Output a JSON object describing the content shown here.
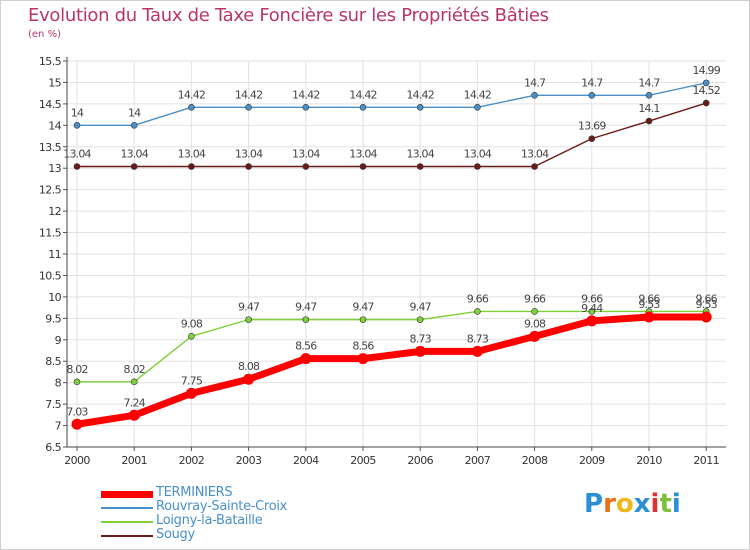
{
  "header": {
    "title": "Evolution du Taux de Taxe Foncière sur les Propriétés Bâties",
    "unit_label": "(en %)"
  },
  "chart_data": {
    "type": "line",
    "title": "Evolution du Taux de Taxe Foncière sur les Propriétés Bâties",
    "ylabel": "(en %)",
    "xlabel": "",
    "categories": [
      "2000",
      "2001",
      "2002",
      "2003",
      "2004",
      "2005",
      "2006",
      "2007",
      "2008",
      "2009",
      "2010",
      "2011"
    ],
    "ylim": [
      6.5,
      15.5
    ],
    "yticks": [
      "6.5",
      "7",
      "7.5",
      "8",
      "8.5",
      "9",
      "9.5",
      "10",
      "10.5",
      "11",
      "11.5",
      "12",
      "12.5",
      "13",
      "13.5",
      "14",
      "14.5",
      "15",
      "15.5"
    ],
    "grid": true,
    "series": [
      {
        "name": "TERMINIERS",
        "color": "#ff0000",
        "values": [
          7.03,
          7.24,
          7.75,
          8.08,
          8.56,
          8.56,
          8.73,
          8.73,
          9.08,
          9.44,
          9.53,
          9.53
        ],
        "labels": [
          "7.03",
          "7.24",
          "7.75",
          "8.08",
          "8.56",
          "8.56",
          "8.73",
          "8.73",
          "9.08",
          "9.44",
          "9.53",
          "9.53"
        ]
      },
      {
        "name": "Rouvray-Sainte-Croix",
        "color": "#4a90c8",
        "values": [
          14,
          14,
          14.42,
          14.42,
          14.42,
          14.42,
          14.42,
          14.42,
          14.7,
          14.7,
          14.7,
          14.99
        ],
        "labels": [
          "14",
          "14",
          "14.42",
          "14.42",
          "14.42",
          "14.42",
          "14.42",
          "14.42",
          "14.7",
          "14.7",
          "14.7",
          "14.99"
        ]
      },
      {
        "name": "Loigny-la-Bataille",
        "color": "#7fd13b",
        "values": [
          8.02,
          8.02,
          9.08,
          9.47,
          9.47,
          9.47,
          9.47,
          9.66,
          9.66,
          9.66,
          9.66,
          9.66
        ],
        "labels": [
          "8.02",
          "8.02",
          "9.08",
          "9.47",
          "9.47",
          "9.47",
          "9.47",
          "9.66",
          "9.66",
          "9.66",
          "9.66",
          "9.66"
        ]
      },
      {
        "name": "Sougy",
        "color": "#6b1a1a",
        "values": [
          13.04,
          13.04,
          13.04,
          13.04,
          13.04,
          13.04,
          13.04,
          13.04,
          13.04,
          13.69,
          14.1,
          14.52
        ],
        "labels": [
          "13.04",
          "13.04",
          "13.04",
          "13.04",
          "13.04",
          "13.04",
          "13.04",
          "13.04",
          "13.04",
          "13.69",
          "14.1",
          "14.52"
        ]
      }
    ]
  },
  "legend": {
    "items": [
      {
        "label": "TERMINIERS",
        "color": "#ff0000"
      },
      {
        "label": "Rouvray-Sainte-Croix",
        "color": "#4a90c8"
      },
      {
        "label": "Loigny-la-Bataille",
        "color": "#7fd13b"
      },
      {
        "label": "Sougy",
        "color": "#6b1a1a"
      }
    ]
  },
  "logo": {
    "letters": [
      "P",
      "r",
      "o",
      "x",
      "i",
      "t",
      "i"
    ],
    "colors": [
      "#2b8fd6",
      "#e8701a",
      "#f0b81c",
      "#2b8fd6",
      "#e03030",
      "#7fbf3b",
      "#2b8fd6"
    ]
  }
}
